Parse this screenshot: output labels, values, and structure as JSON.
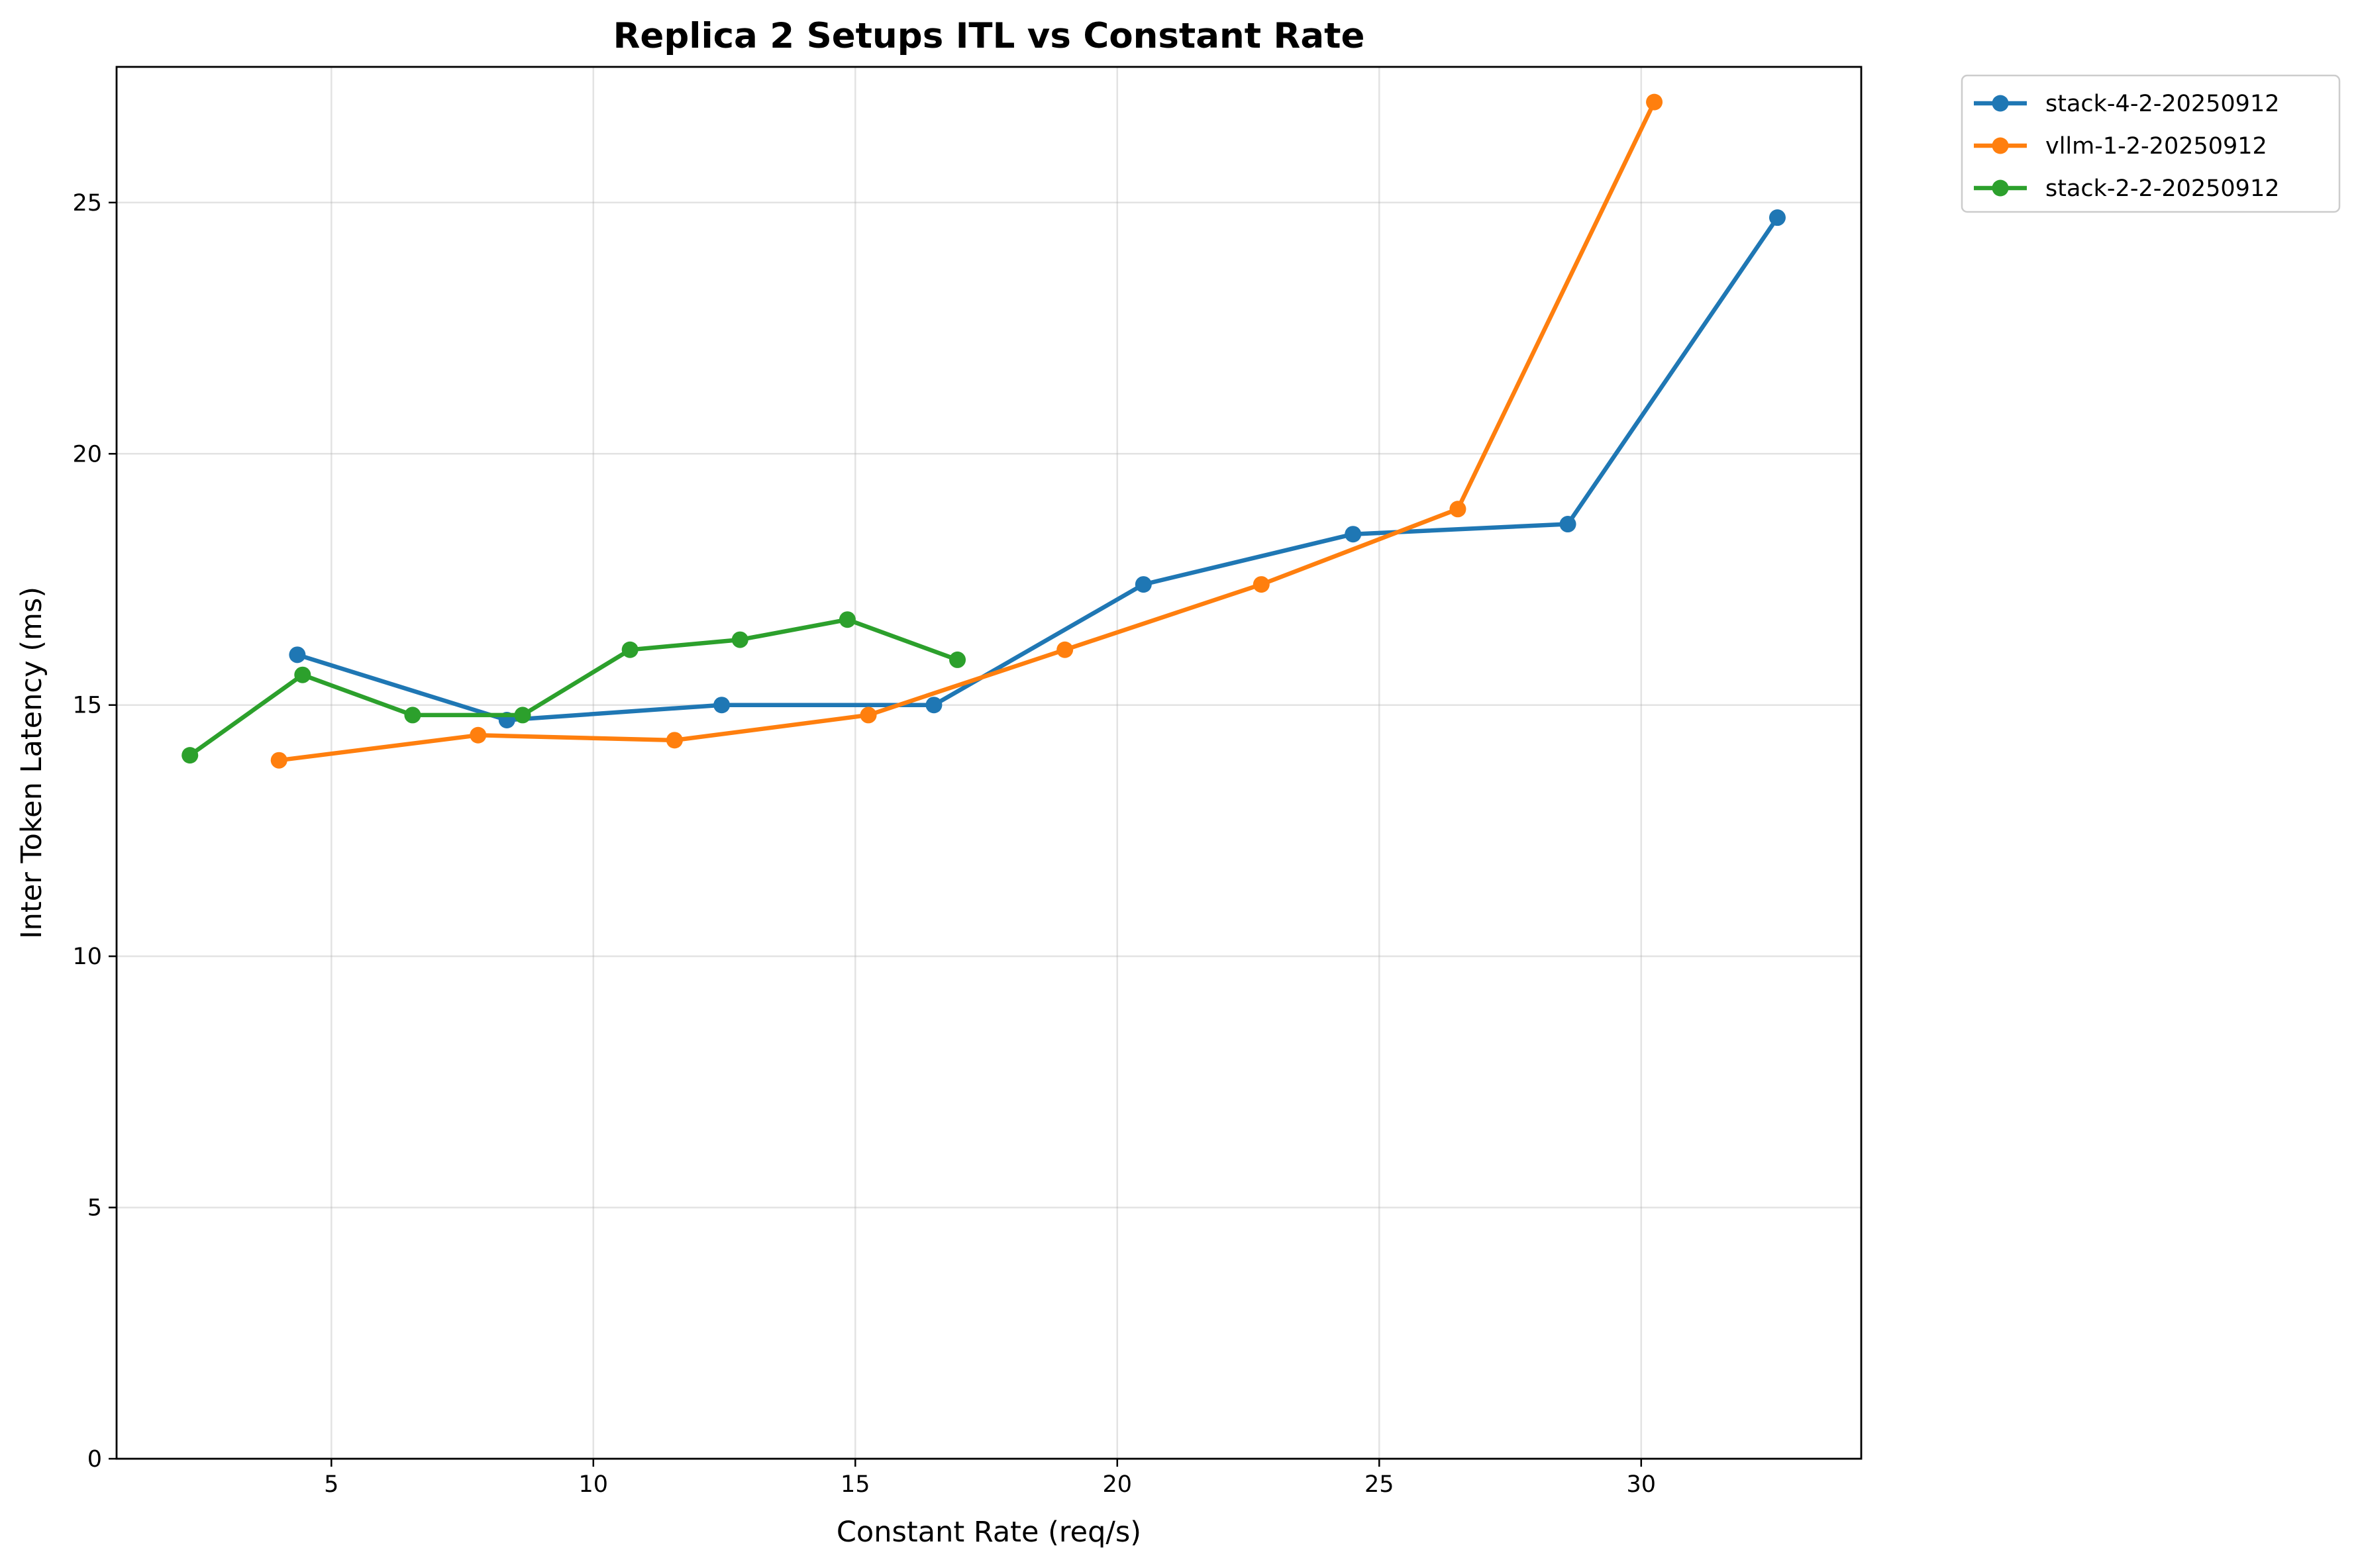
{
  "chart_data": {
    "type": "line",
    "title": "Replica 2 Setups ITL vs Constant Rate",
    "xlabel": "Constant Rate (req/s)",
    "ylabel": "Inter Token Latency (ms)",
    "xlim": [
      0.9,
      34.2
    ],
    "ylim": [
      0,
      27.7
    ],
    "xticks": [
      5,
      10,
      15,
      20,
      25,
      30
    ],
    "yticks": [
      0,
      5,
      10,
      15,
      20,
      25
    ],
    "grid": true,
    "legend_position": "outside-top-right",
    "series": [
      {
        "name": "stack-4-2-20250912",
        "color": "#1f77b4",
        "x": [
          4.35,
          8.35,
          12.45,
          16.5,
          20.5,
          24.5,
          28.6,
          32.6
        ],
        "y": [
          16.0,
          14.7,
          15.0,
          15.0,
          17.4,
          18.4,
          18.6,
          24.7
        ]
      },
      {
        "name": "vllm-1-2-20250912",
        "color": "#ff7f0e",
        "x": [
          4.0,
          7.8,
          11.55,
          15.25,
          19.0,
          22.75,
          26.5,
          30.25
        ],
        "y": [
          13.9,
          14.4,
          14.3,
          14.8,
          16.1,
          17.4,
          18.9,
          27.0
        ]
      },
      {
        "name": "stack-2-2-20250912",
        "color": "#2ca02c",
        "x": [
          2.3,
          4.45,
          6.55,
          8.65,
          10.7,
          12.8,
          14.85,
          16.95
        ],
        "y": [
          14.0,
          15.6,
          14.8,
          14.8,
          16.1,
          16.3,
          16.7,
          15.9
        ]
      }
    ]
  }
}
